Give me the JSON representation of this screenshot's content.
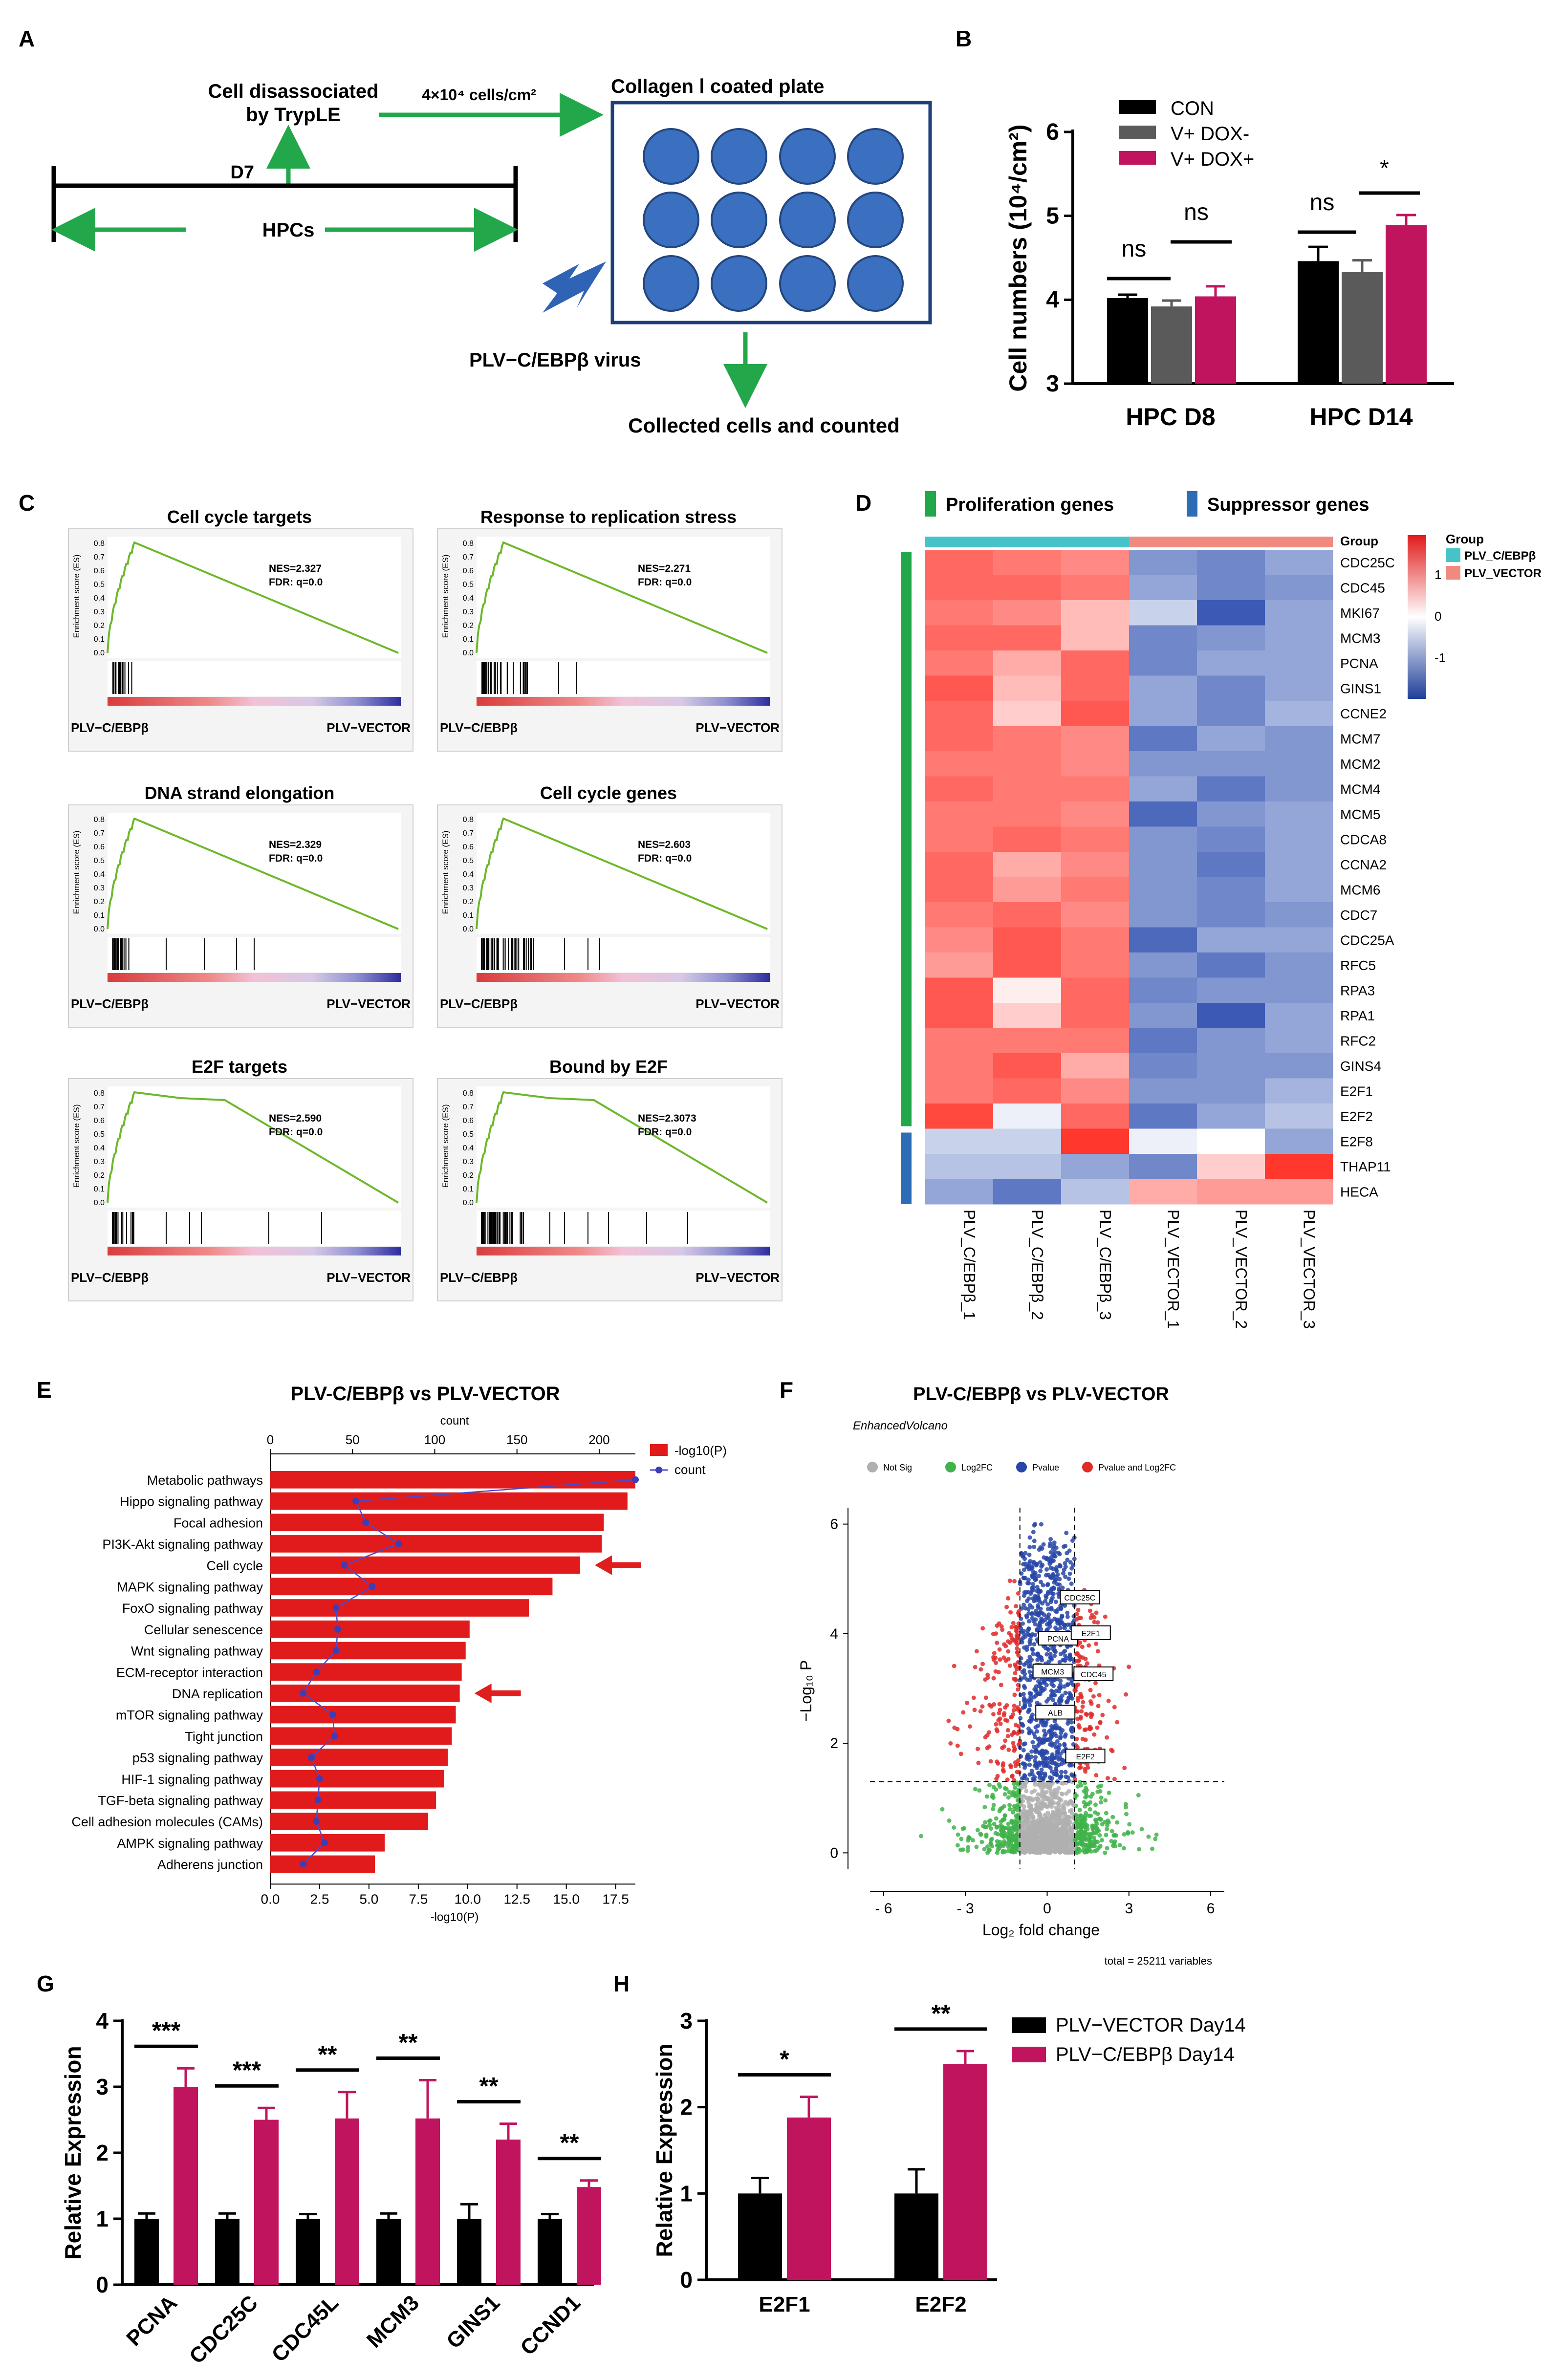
{
  "colors": {
    "green": "#22a84a",
    "black": "#000000",
    "grey": "#5a5a5a",
    "magenta": "#c0145e",
    "red": "#e11b1b",
    "blue": "#1f3f99",
    "cyan": "#45c3c8",
    "salmon": "#f08a7f",
    "circle": "#3b6fbf",
    "lightgreen": "#7fcf5f",
    "volcano_grey": "#b0b0b0"
  },
  "panelA": {
    "letter": "A",
    "dissociated_line1": "Cell disassociated",
    "dissociated_line2": "by TrypLE",
    "density": "4×10⁴ cells/cm²",
    "plate_title": "Collagen Ⅰ coated plate",
    "d7": "D7",
    "hpcs": "HPCs",
    "virus": "PLV−C/EBPβ virus",
    "collected": "Collected cells and counted"
  },
  "panelB": {
    "letter": "B",
    "chart_data": {
      "type": "bar",
      "categories": [
        "HPC D8",
        "HPC D14"
      ],
      "series": [
        {
          "name": "CON",
          "values": [
            4.02,
            4.46
          ],
          "errors": [
            0.04,
            0.17
          ]
        },
        {
          "name": "V+ DOX-",
          "values": [
            3.92,
            4.33
          ],
          "errors": [
            0.07,
            0.14
          ]
        },
        {
          "name": "V+ DOX+",
          "values": [
            4.04,
            4.89
          ],
          "errors": [
            0.12,
            0.12
          ]
        }
      ],
      "ylabel": "Cell numbers (10⁴/cm²)",
      "ylim": [
        3,
        6
      ],
      "yticks": [
        "3",
        "4",
        "5",
        "6"
      ],
      "annotations": [
        "ns",
        "ns",
        "ns",
        "*"
      ]
    }
  },
  "panelC": {
    "letter": "C",
    "ylabel": "Enrichment score (ES)",
    "left_label": "PLV−C/EBPβ",
    "right_label": "PLV−VECTOR",
    "plots": [
      {
        "title": "Cell cycle targets",
        "nes": "NES=2.327",
        "fdr": "FDR: q=0.0"
      },
      {
        "title": "Response to replication stress",
        "nes": "NES=2.271",
        "fdr": "FDR: q=0.0"
      },
      {
        "title": "DNA strand elongation",
        "nes": "NES=2.329",
        "fdr": "FDR: q=0.0"
      },
      {
        "title": "Cell cycle genes",
        "nes": "NES=2.603",
        "fdr": "FDR: q=0.0"
      },
      {
        "title": "E2F targets",
        "nes": "NES=2.590",
        "fdr": "FDR: q=0.0"
      },
      {
        "title": "Bound by E2F",
        "nes": "NES=2.3073",
        "fdr": "FDR: q=0.0"
      }
    ]
  },
  "panelD": {
    "letter": "D",
    "proliferation": "Proliferation genes",
    "suppressor": "Suppressor genes",
    "group_row": "Group",
    "legend_title": "Group",
    "legend_items": [
      "PLV_C/EBPβ",
      "PLV_VECTOR"
    ],
    "scale_ticks": [
      "1",
      "0",
      "-1"
    ],
    "columns": [
      "PLV_C/EBPβ_1",
      "PLV_C/EBPβ_2",
      "PLV_C/EBPβ_3",
      "PLV_VECTOR_1",
      "PLV_VECTOR_2",
      "PLV_VECTOR_3"
    ],
    "genes": [
      "CDC25C",
      "CDC45",
      "MKI67",
      "MCM3",
      "PCNA",
      "GINS1",
      "CCNE2",
      "MCM7",
      "MCM2",
      "MCM4",
      "MCM5",
      "CDCA8",
      "CCNA2",
      "MCM6",
      "CDC7",
      "CDC25A",
      "RFC5",
      "RPA3",
      "RPA1",
      "RFC2",
      "GINS4",
      "E2F1",
      "E2F2",
      "E2F8",
      "THAP11",
      "HECA"
    ],
    "values": [
      [
        0.9,
        0.8,
        0.7,
        -0.7,
        -0.8,
        -0.6
      ],
      [
        0.9,
        0.9,
        0.8,
        -0.6,
        -0.8,
        -0.7
      ],
      [
        0.8,
        0.7,
        0.4,
        -0.3,
        -1.1,
        -0.6
      ],
      [
        0.9,
        0.9,
        0.4,
        -0.8,
        -0.7,
        -0.6
      ],
      [
        0.8,
        0.5,
        0.9,
        -0.8,
        -0.6,
        -0.6
      ],
      [
        1.0,
        0.4,
        0.9,
        -0.6,
        -0.8,
        -0.6
      ],
      [
        0.9,
        0.3,
        1.0,
        -0.6,
        -0.8,
        -0.5
      ],
      [
        0.9,
        0.8,
        0.7,
        -0.9,
        -0.6,
        -0.7
      ],
      [
        0.8,
        0.8,
        0.7,
        -0.7,
        -0.7,
        -0.7
      ],
      [
        0.9,
        0.8,
        0.8,
        -0.6,
        -0.9,
        -0.7
      ],
      [
        0.8,
        0.8,
        0.7,
        -1.0,
        -0.7,
        -0.6
      ],
      [
        0.8,
        0.9,
        0.8,
        -0.7,
        -0.8,
        -0.6
      ],
      [
        0.9,
        0.5,
        0.7,
        -0.7,
        -0.9,
        -0.6
      ],
      [
        0.9,
        0.6,
        0.8,
        -0.7,
        -0.8,
        -0.6
      ],
      [
        0.8,
        0.9,
        0.7,
        -0.7,
        -0.8,
        -0.7
      ],
      [
        0.7,
        1.0,
        0.8,
        -1.0,
        -0.6,
        -0.6
      ],
      [
        0.6,
        1.0,
        0.8,
        -0.7,
        -0.9,
        -0.7
      ],
      [
        1.0,
        0.1,
        0.9,
        -0.8,
        -0.7,
        -0.7
      ],
      [
        1.0,
        0.3,
        0.9,
        -0.7,
        -1.1,
        -0.6
      ],
      [
        0.8,
        0.8,
        0.8,
        -0.9,
        -0.7,
        -0.6
      ],
      [
        0.8,
        1.0,
        0.5,
        -0.8,
        -0.7,
        -0.7
      ],
      [
        0.8,
        0.9,
        0.7,
        -0.7,
        -0.7,
        -0.5
      ],
      [
        1.1,
        -0.1,
        0.9,
        -0.9,
        -0.6,
        -0.4
      ],
      [
        -0.3,
        -0.3,
        1.6,
        -0.1,
        0.0,
        -0.6
      ],
      [
        -0.4,
        -0.4,
        -0.6,
        -0.8,
        0.3,
        1.6
      ],
      [
        -0.6,
        -0.9,
        -0.4,
        0.5,
        0.6,
        0.6
      ]
    ]
  },
  "panelE": {
    "letter": "E",
    "chart_data": {
      "type": "bar",
      "title": "PLV-C/EBPβ vs PLV-VECTOR",
      "categories": [
        "Metabolic pathways",
        "Hippo signaling pathway",
        "Focal adhesion",
        "PI3K-Akt signaling pathway",
        "Cell cycle",
        "MAPK signaling pathway",
        "FoxO signaling pathway",
        "Cellular senescence",
        "Wnt signaling pathway",
        "ECM-receptor interaction",
        "DNA replication",
        "mTOR signaling pathway",
        "Tight junction",
        "p53 signaling pathway",
        "HIF-1 signaling pathway",
        "TGF-beta signaling pathway",
        "Cell adhesion molecules (CAMs)",
        "AMPK signaling pathway",
        "Adherens junction"
      ],
      "neglog10p": [
        18.5,
        18.1,
        16.9,
        16.8,
        15.7,
        14.3,
        13.1,
        10.1,
        9.9,
        9.7,
        9.6,
        9.4,
        9.2,
        9.0,
        8.8,
        8.4,
        8.0,
        5.8,
        5.3
      ],
      "counts": [
        222,
        52,
        58,
        78,
        45,
        62,
        40,
        41,
        40,
        28,
        20,
        38,
        39,
        25,
        30,
        29,
        28,
        33,
        20
      ],
      "xlabel": "-log10(P)",
      "xlim": [
        0,
        18.5
      ],
      "xticks": [
        "0.0",
        "2.5",
        "5.0",
        "7.5",
        "10.0",
        "12.5",
        "15.0",
        "17.5"
      ],
      "top_label": "count",
      "top_lim": [
        0,
        222
      ],
      "top_ticks": [
        "0",
        "50",
        "100",
        "150",
        "200"
      ],
      "legend": [
        "-log10(P)",
        "count"
      ],
      "arrows_at": [
        "Cell cycle",
        "DNA replication"
      ]
    }
  },
  "panelF": {
    "letter": "F",
    "chart_data": {
      "type": "scatter",
      "title": "PLV-C/EBPβ vs PLV-VECTOR",
      "subtitle": "EnhancedVolcano",
      "legend": [
        "Not Sig",
        "Log2FC",
        "Pvalue",
        "Pvalue and Log2FC"
      ],
      "xlabel": "Log₂ fold change",
      "ylabel": "−Log₁₀ P",
      "xlim": [
        -6.5,
        6.5
      ],
      "ylim": [
        -0.3,
        6.3
      ],
      "xticks": [
        "- 6",
        "- 3",
        "0",
        "3",
        "6"
      ],
      "yticks": [
        "0",
        "2",
        "4",
        "6"
      ],
      "fc_cutoff": 1,
      "p_cutoff": 1.3,
      "labeled_genes": [
        {
          "name": "CDC25C",
          "x": 1.2,
          "y": 4.65
        },
        {
          "name": "PCNA",
          "x": 0.4,
          "y": 3.9
        },
        {
          "name": "E2F1",
          "x": 1.6,
          "y": 4.0
        },
        {
          "name": "MCM3",
          "x": 0.2,
          "y": 3.3
        },
        {
          "name": "CDC45",
          "x": 1.7,
          "y": 3.25
        },
        {
          "name": "ALB",
          "x": 0.3,
          "y": 2.55
        },
        {
          "name": "E2F2",
          "x": 1.4,
          "y": 1.75
        }
      ],
      "footer": "total = 25211 variables"
    }
  },
  "panelG": {
    "letter": "G",
    "chart_data": {
      "type": "bar",
      "categories": [
        "PCNA",
        "CDC25C",
        "CDC45L",
        "MCM3",
        "GINS1",
        "CCND1"
      ],
      "series": [
        {
          "name": "PLV−VECTOR Day14",
          "values": [
            1.0,
            1.0,
            1.0,
            1.0,
            1.0,
            1.0
          ],
          "errors": [
            0.08,
            0.08,
            0.07,
            0.08,
            0.22,
            0.07
          ]
        },
        {
          "name": "PLV−C/EBPβ Day14",
          "values": [
            3.0,
            2.5,
            2.52,
            2.52,
            2.2,
            1.48
          ],
          "errors": [
            0.28,
            0.18,
            0.4,
            0.58,
            0.24,
            0.1
          ]
        }
      ],
      "ylabel": "Relative  Expression",
      "ylim": [
        0,
        4
      ],
      "yticks": [
        "0",
        "1",
        "2",
        "3",
        "4"
      ],
      "significance": [
        "***",
        "***",
        "**",
        "**",
        "**",
        "**"
      ]
    }
  },
  "panelH": {
    "letter": "H",
    "chart_data": {
      "type": "bar",
      "categories": [
        "E2F1",
        "E2F2"
      ],
      "series": [
        {
          "name": "PLV−VECTOR Day14",
          "values": [
            1.0,
            1.0
          ],
          "errors": [
            0.18,
            0.28
          ]
        },
        {
          "name": "PLV−C/EBPβ Day14",
          "values": [
            1.88,
            2.5
          ],
          "errors": [
            0.24,
            0.15
          ]
        }
      ],
      "ylabel": "Relative  Expression",
      "ylim": [
        0,
        3
      ],
      "yticks": [
        "0",
        "1",
        "2",
        "3"
      ],
      "significance": [
        "*",
        "**"
      ],
      "legend": [
        "PLV−VECTOR Day14",
        "PLV−C/EBPβ Day14"
      ]
    }
  }
}
